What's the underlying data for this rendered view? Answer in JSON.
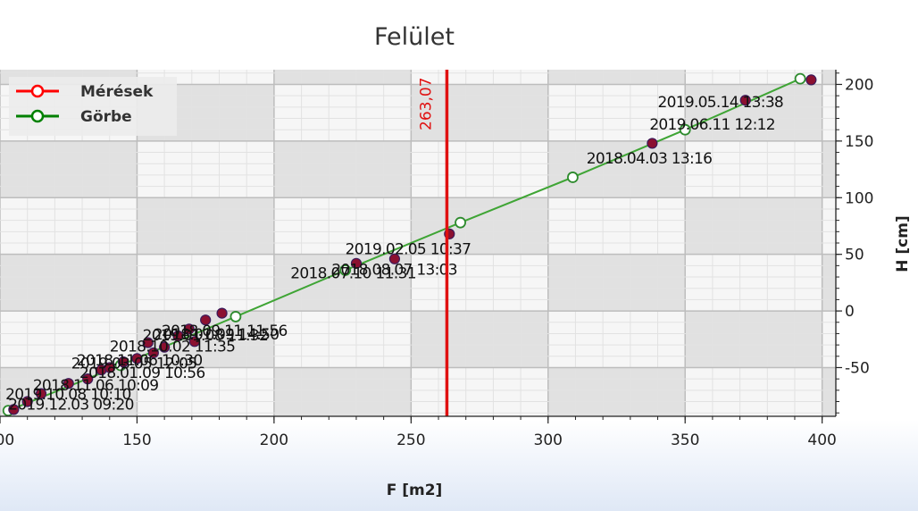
{
  "chart_data": {
    "type": "scatter",
    "title": "Felület",
    "xlabel": "F [m2]",
    "ylabel": "H [cm]",
    "xlim": [
      100,
      405
    ],
    "ylim": [
      -93,
      213
    ],
    "x_ticks": [
      100,
      150,
      200,
      250,
      300,
      350,
      400
    ],
    "y_ticks": [
      -50,
      0,
      50,
      100,
      150,
      200
    ],
    "grid": true,
    "legend": {
      "placement": "top-left",
      "entries": [
        {
          "name": "Mérések",
          "color": "#ff0000"
        },
        {
          "name": "Görbe",
          "color": "#008000"
        }
      ]
    },
    "vertical_marker": {
      "x": 263.07,
      "label": "263,07",
      "color": "#e01010"
    },
    "series": [
      {
        "name": "Görbe",
        "color": "#3fa535",
        "x": [
          103,
          144,
          186,
          226,
          268,
          309,
          350,
          392
        ],
        "y": [
          -88,
          -48,
          -5,
          36,
          78,
          118,
          160,
          205
        ]
      },
      {
        "name": "Mérések",
        "color": "#8b1030",
        "x": [
          105,
          110,
          115,
          125,
          132,
          137,
          140,
          145,
          150,
          154,
          156,
          160,
          165,
          169,
          171,
          175,
          181,
          230,
          244,
          264,
          338,
          372,
          396
        ],
        "y": [
          -87,
          -80,
          -73,
          -64,
          -60,
          -52,
          -50,
          -45,
          -42,
          -28,
          -37,
          -32,
          -22,
          -16,
          -27,
          -8,
          -2,
          42,
          46,
          68,
          148,
          186,
          204
        ]
      }
    ],
    "annotations": [
      {
        "text": "2019.05.14 13:38",
        "x": 340,
        "y": 180
      },
      {
        "text": "2019.06.11 12:12",
        "x": 337,
        "y": 160
      },
      {
        "text": "2018.04.03 13:16",
        "x": 314,
        "y": 130
      },
      {
        "text": "2019.02.05 10:37",
        "x": 226,
        "y": 50
      },
      {
        "text": "2018.08.07 13:03",
        "x": 221,
        "y": 32
      },
      {
        "text": "2018.07.10 11:31",
        "x": 206,
        "y": 29
      },
      {
        "text": "2018.09.11 11:56",
        "x": 159,
        "y": -22
      },
      {
        "text": "2018.01.09 14:50",
        "x": 156,
        "y": -25
      },
      {
        "text": "2019.01.08 11:32",
        "x": 152,
        "y": -26
      },
      {
        "text": "2018.10.02 11:35",
        "x": 140,
        "y": -36
      },
      {
        "text": "2019.03.05 12:05",
        "x": 126,
        "y": -51
      },
      {
        "text": "2018.11.06 10:30",
        "x": 128,
        "y": -48
      },
      {
        "text": "2018.01.09 10:56",
        "x": 129,
        "y": -59
      },
      {
        "text": "2018.11.06 10:09",
        "x": 112,
        "y": -70
      },
      {
        "text": "2019.10.08 10:10",
        "x": 102,
        "y": -78
      },
      {
        "text": "2019.12.03 09:20",
        "x": 103,
        "y": -87
      }
    ]
  }
}
